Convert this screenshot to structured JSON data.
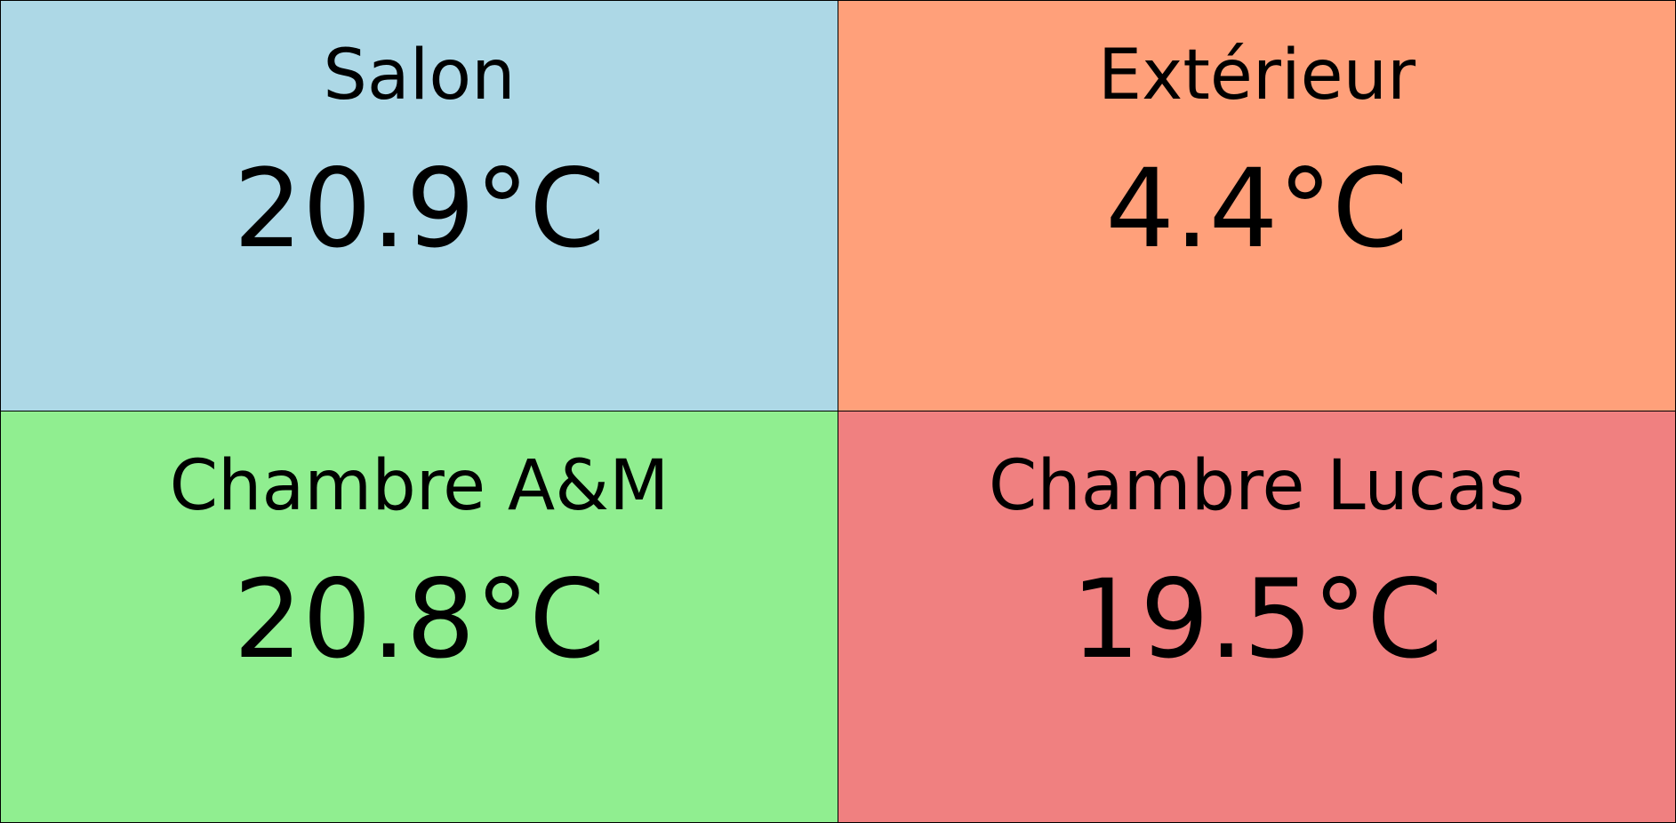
{
  "rooms": [
    {
      "name": "Salon",
      "temperature": "20.9°C",
      "color": "#ADD8E6"
    },
    {
      "name": "Extérieur",
      "temperature": "4.4°C",
      "color": "#FFA07A"
    },
    {
      "name": "Chambre A&M",
      "temperature": "20.8°C",
      "color": "#90EE90"
    },
    {
      "name": "Chambre Lucas",
      "temperature": "19.5°C",
      "color": "#F08080"
    }
  ]
}
